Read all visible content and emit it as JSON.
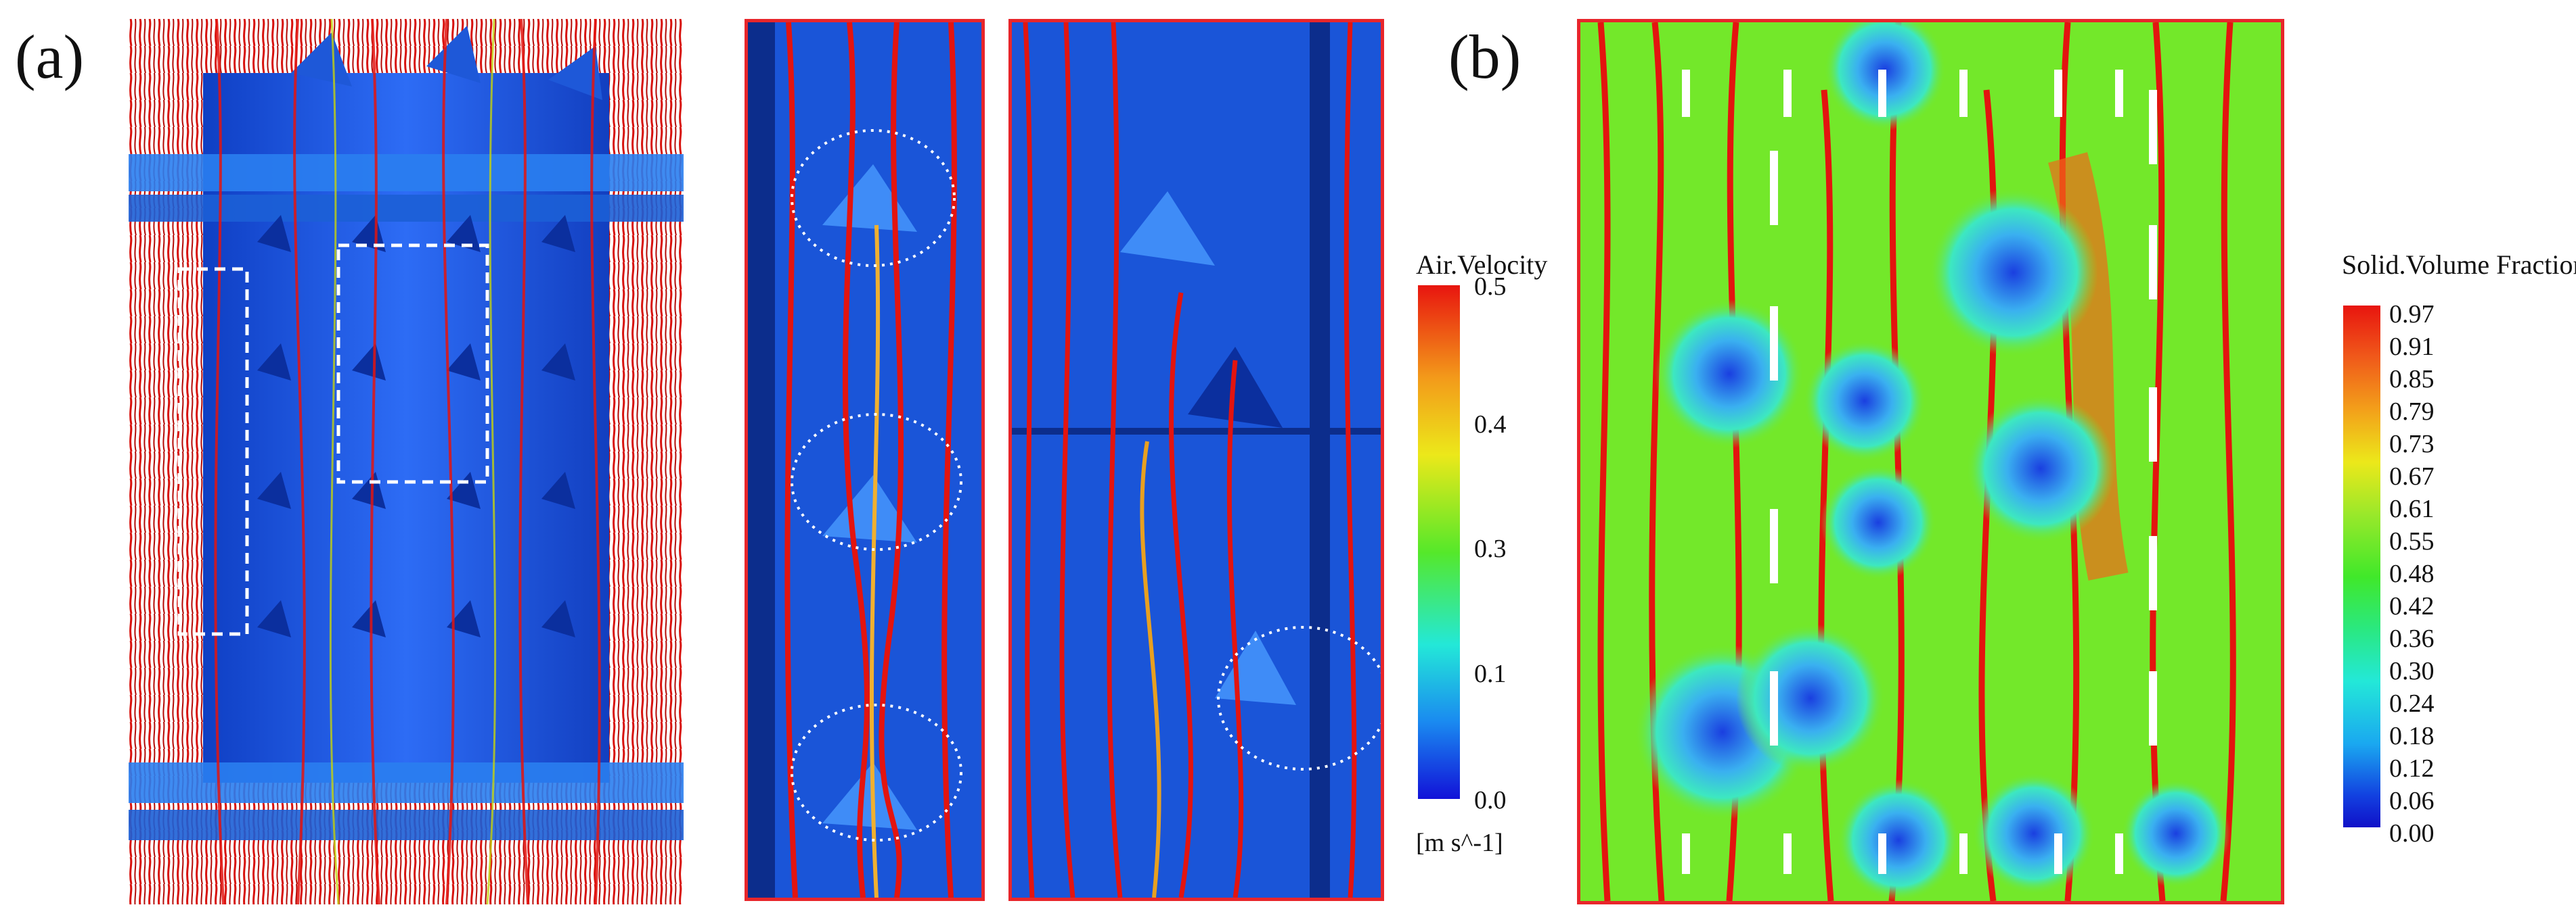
{
  "panels": {
    "a_label": "(a)",
    "b_label": "(b)"
  },
  "air_velocity_colorbar": {
    "title": "Air.Velocity",
    "ticks": [
      "0.5",
      "0.4",
      "0.3",
      "0.1",
      "0.0"
    ],
    "unit": "[m s^-1]"
  },
  "solid_fraction_colorbar": {
    "title": "Solid.Volume Fraction",
    "ticks": [
      "0.97",
      "0.91",
      "0.85",
      "0.79",
      "0.73",
      "0.67",
      "0.61",
      "0.55",
      "0.48",
      "0.42",
      "0.36",
      "0.30",
      "0.24",
      "0.18",
      "0.12",
      "0.06",
      "0.00"
    ]
  },
  "colors": {
    "frame_red": "#e8262b",
    "structure_blue": "#1f5fe8",
    "streamline_red": "#e3140f",
    "background_green": "#73e82a"
  }
}
